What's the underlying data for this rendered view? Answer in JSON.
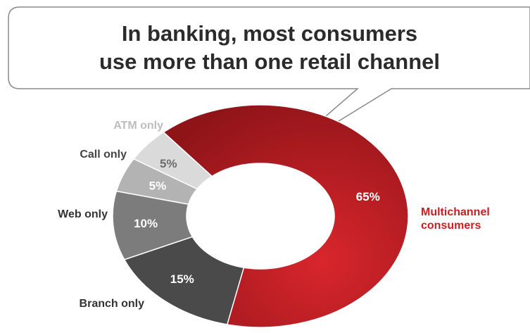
{
  "chart_data": {
    "type": "pie",
    "title_lines": [
      "In banking, most consumers",
      "use more than one retail channel"
    ],
    "categories": [
      "Multichannel consumers",
      "Branch only",
      "Web only",
      "Call only",
      "ATM only"
    ],
    "label_lines": [
      [
        "Multichannel",
        "consumers"
      ],
      [
        "Branch only"
      ],
      [
        "Web only"
      ],
      [
        "Call only"
      ],
      [
        "ATM only"
      ]
    ],
    "values": [
      65,
      15,
      10,
      5,
      5
    ],
    "value_labels": [
      "65%",
      "15%",
      "10%",
      "5%",
      "5%"
    ],
    "colors": [
      "#b31a1e",
      "#4a4a4a",
      "#7c7c7c",
      "#b3b3b3",
      "#dadada"
    ],
    "label_colors": [
      "#c81e24",
      "#333333",
      "#333333",
      "#444444",
      "#bdbdbd"
    ],
    "value_label_colors": [
      "#ffffff",
      "#ffffff",
      "#ffffff",
      "#ffffff",
      "#6d6d6d"
    ],
    "style": "donut"
  }
}
